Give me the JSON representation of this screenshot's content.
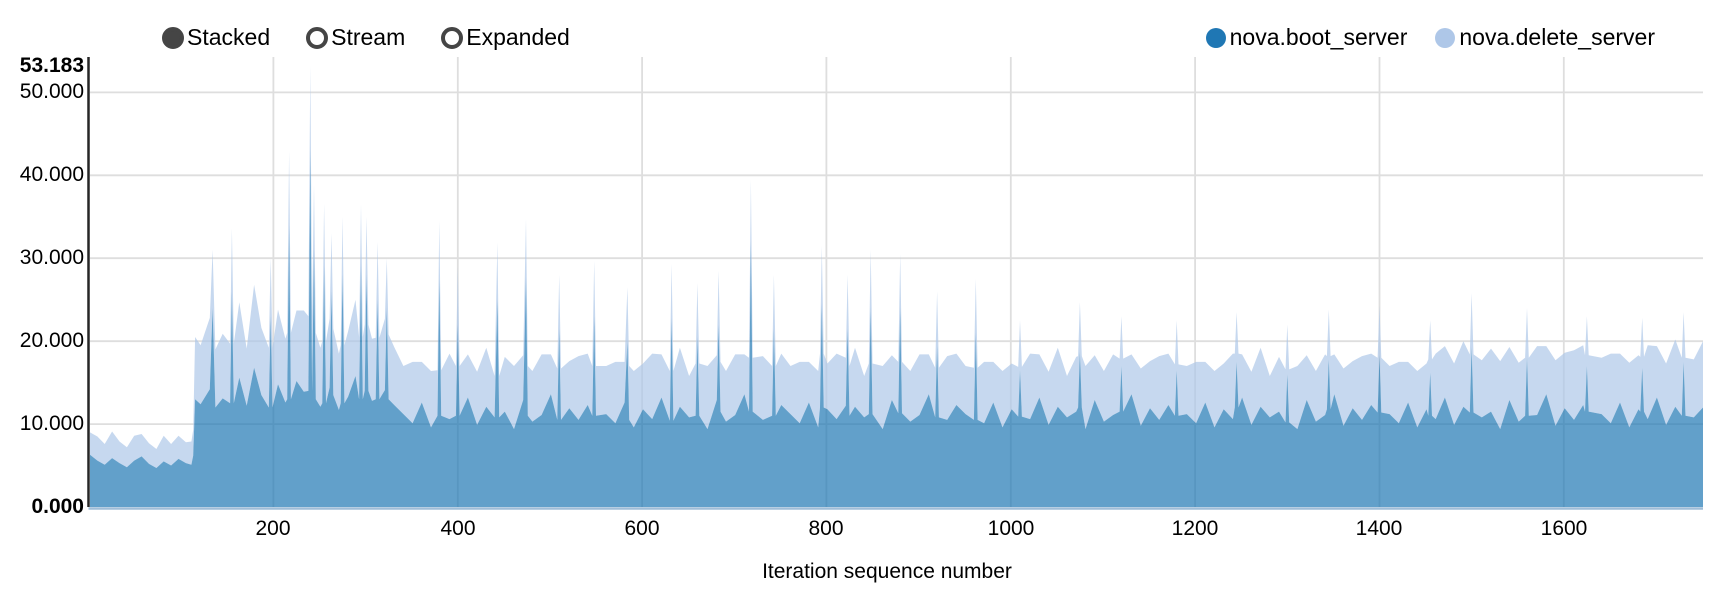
{
  "controls": {
    "options": [
      {
        "label": "Stacked",
        "selected": true
      },
      {
        "label": "Stream",
        "selected": false
      },
      {
        "label": "Expanded",
        "selected": false
      }
    ]
  },
  "legend": {
    "items": [
      {
        "label": "nova.boot_server",
        "color": "#1f77b4"
      },
      {
        "label": "nova.delete_server",
        "color": "#aec7e8"
      }
    ]
  },
  "chart_data": {
    "type": "area",
    "stacked": true,
    "mode": "Stacked",
    "xlabel": "Iteration sequence number",
    "ylabel": "",
    "xlim": [
      1,
      1751
    ],
    "ylim": [
      0,
      53.183
    ],
    "grid": true,
    "legend_position": "top-right",
    "area_opacity": 0.7,
    "colors": {
      "series1": "#1f77b4",
      "series2": "#aec7e8",
      "grid": "#dedede",
      "y_axis_line": "#000000",
      "x_axis_line": "#9fbdd8",
      "text": "#000000",
      "radio": "#454545"
    },
    "y_ticks": {
      "values": [
        0,
        10,
        20,
        30,
        40,
        50
      ],
      "labels": [
        "0.000",
        "10.000",
        "20.000",
        "30.000",
        "40.000",
        "50.000"
      ],
      "max_value": 53.183,
      "max_label": "53.183"
    },
    "x_ticks": [
      200,
      400,
      600,
      800,
      1000,
      1200,
      1400,
      1600
    ],
    "series": [
      {
        "name": "nova.boot_server",
        "color": "#1f77b4"
      },
      {
        "name": "nova.delete_server",
        "color": "#aec7e8"
      }
    ],
    "points_format": [
      "iteration",
      "nova.boot_server_duration",
      "nova.delete_server_duration"
    ],
    "points": [
      [
        1,
        6.3,
        2.7
      ],
      [
        9,
        5.6,
        2.9
      ],
      [
        17,
        5.1,
        2.5
      ],
      [
        25,
        5.9,
        3.2
      ],
      [
        33,
        5.3,
        2.6
      ],
      [
        41,
        4.8,
        2.4
      ],
      [
        49,
        5.6,
        3.0
      ],
      [
        57,
        6.1,
        2.7
      ],
      [
        65,
        5.2,
        2.5
      ],
      [
        73,
        4.7,
        2.3
      ],
      [
        81,
        5.5,
        3.1
      ],
      [
        89,
        5.0,
        2.6
      ],
      [
        97,
        5.8,
        2.8
      ],
      [
        105,
        5.3,
        2.5
      ],
      [
        111,
        5.1,
        2.8
      ],
      [
        113,
        6.2,
        3.1
      ],
      [
        115,
        13.0,
        7.5
      ],
      [
        121,
        12.4,
        7.1
      ],
      [
        131,
        14.2,
        8.6
      ],
      [
        134,
        24.0,
        7.0
      ],
      [
        137,
        12.0,
        7.0
      ],
      [
        145,
        13.1,
        7.8
      ],
      [
        153,
        12.5,
        7.2
      ],
      [
        155,
        26.0,
        7.6
      ],
      [
        157,
        12.5,
        7.2
      ],
      [
        163,
        15.6,
        9.1
      ],
      [
        171,
        12.2,
        6.9
      ],
      [
        179,
        16.8,
        10.0
      ],
      [
        187,
        13.5,
        8.1
      ],
      [
        195,
        12.0,
        7.2
      ],
      [
        197,
        23.0,
        7.0
      ],
      [
        199,
        12.0,
        7.2
      ],
      [
        205,
        14.8,
        9.0
      ],
      [
        213,
        12.6,
        7.7
      ],
      [
        215,
        13.0,
        8.0
      ],
      [
        217,
        34.0,
        8.9
      ],
      [
        219,
        13.0,
        8.0
      ],
      [
        225,
        15.2,
        8.5
      ],
      [
        233,
        13.9,
        9.8
      ],
      [
        238,
        14.0,
        9.0
      ],
      [
        240,
        43.2,
        9.983
      ],
      [
        242,
        14.0,
        9.0
      ],
      [
        244,
        31.0,
        7.8
      ],
      [
        246,
        13.0,
        8.0
      ],
      [
        251,
        12.1,
        7.1
      ],
      [
        253,
        12.5,
        7.5
      ],
      [
        255,
        29.0,
        7.6
      ],
      [
        257,
        12.5,
        7.5
      ],
      [
        261,
        14.4,
        8.3
      ],
      [
        263,
        26.0,
        7.0
      ],
      [
        265,
        13.5,
        8.0
      ],
      [
        271,
        11.7,
        6.8
      ],
      [
        273,
        12.5,
        7.0
      ],
      [
        275,
        28.0,
        7.0
      ],
      [
        277,
        12.5,
        7.0
      ],
      [
        281,
        13.3,
        7.9
      ],
      [
        289,
        15.8,
        9.2
      ],
      [
        293,
        13.0,
        7.5
      ],
      [
        295,
        29.0,
        7.5
      ],
      [
        297,
        13.0,
        7.5
      ],
      [
        299,
        14.0,
        8.0
      ],
      [
        301,
        28.0,
        7.0
      ],
      [
        303,
        14.0,
        8.0
      ],
      [
        307,
        12.8,
        7.5
      ],
      [
        311,
        13.0,
        7.4
      ],
      [
        313,
        25.0,
        7.0
      ],
      [
        315,
        13.0,
        7.4
      ],
      [
        321,
        14.1,
        8.6
      ],
      [
        323,
        24.0,
        6.0
      ],
      [
        325,
        13.0,
        7.8
      ],
      [
        331,
        12.3,
        7.0
      ],
      [
        341,
        11.2,
        5.8
      ],
      [
        351,
        10.1,
        7.4
      ],
      [
        361,
        12.6,
        4.9
      ],
      [
        371,
        9.6,
        6.8
      ],
      [
        378,
        11.0,
        5.5
      ],
      [
        380,
        27.5,
        7.0
      ],
      [
        382,
        11.0,
        5.5
      ],
      [
        391,
        10.6,
        7.9
      ],
      [
        398,
        11.0,
        6.0
      ],
      [
        400,
        22.0,
        7.0
      ],
      [
        402,
        11.0,
        6.0
      ],
      [
        411,
        13.2,
        5.2
      ],
      [
        421,
        9.9,
        6.4
      ],
      [
        431,
        12.1,
        7.1
      ],
      [
        440,
        10.8,
        5.0
      ],
      [
        443,
        25.0,
        6.9
      ],
      [
        445,
        10.8,
        5.0
      ],
      [
        451,
        11.5,
        6.6
      ],
      [
        461,
        9.4,
        7.6
      ],
      [
        471,
        12.9,
        5.4
      ],
      [
        474,
        27.7,
        7.0
      ],
      [
        476,
        11.0,
        6.0
      ],
      [
        481,
        10.3,
        6.1
      ],
      [
        491,
        11.1,
        7.3
      ],
      [
        501,
        13.6,
        4.8
      ],
      [
        508,
        10.5,
        6.2
      ],
      [
        510,
        21.5,
        6.5
      ],
      [
        512,
        10.5,
        6.2
      ],
      [
        521,
        11.9,
        5.7
      ],
      [
        531,
        10.5,
        7.7
      ],
      [
        541,
        12.3,
        6.2
      ],
      [
        546,
        11.0,
        6.0
      ],
      [
        548,
        23.0,
        6.7
      ],
      [
        550,
        11.0,
        6.0
      ],
      [
        561,
        11.2,
        5.8
      ],
      [
        571,
        10.1,
        7.4
      ],
      [
        581,
        12.6,
        4.9
      ],
      [
        584,
        20.0,
        6.5
      ],
      [
        586,
        10.5,
        6.5
      ],
      [
        591,
        9.6,
        6.8
      ],
      [
        601,
        11.8,
        5.5
      ],
      [
        611,
        10.6,
        7.9
      ],
      [
        621,
        13.2,
        5.2
      ],
      [
        630,
        10.4,
        6.0
      ],
      [
        632,
        22.8,
        6.5
      ],
      [
        634,
        10.4,
        6.0
      ],
      [
        641,
        12.1,
        7.1
      ],
      [
        651,
        10.8,
        5.0
      ],
      [
        658,
        11.0,
        6.3
      ],
      [
        660,
        20.5,
        6.5
      ],
      [
        662,
        11.0,
        6.3
      ],
      [
        671,
        9.4,
        7.6
      ],
      [
        681,
        12.9,
        5.4
      ],
      [
        683,
        22.0,
        6.5
      ],
      [
        685,
        11.5,
        6.0
      ],
      [
        691,
        10.3,
        6.1
      ],
      [
        701,
        11.1,
        7.3
      ],
      [
        711,
        13.6,
        4.8
      ],
      [
        716,
        11.5,
        6.5
      ],
      [
        718,
        32.0,
        7.5
      ],
      [
        720,
        11.5,
        6.5
      ],
      [
        731,
        10.5,
        7.7
      ],
      [
        741,
        11.0,
        6.0
      ],
      [
        743,
        21.5,
        6.5
      ],
      [
        745,
        11.0,
        6.0
      ],
      [
        751,
        12.3,
        6.2
      ],
      [
        761,
        11.2,
        5.8
      ],
      [
        771,
        10.1,
        7.4
      ],
      [
        781,
        12.6,
        4.9
      ],
      [
        791,
        9.6,
        6.8
      ],
      [
        793,
        12.0,
        6.5
      ],
      [
        795,
        24.5,
        7.0
      ],
      [
        797,
        12.0,
        6.5
      ],
      [
        801,
        11.8,
        5.5
      ],
      [
        811,
        10.6,
        7.9
      ],
      [
        821,
        12.2,
        5.8
      ],
      [
        823,
        21.5,
        6.5
      ],
      [
        825,
        11.0,
        6.0
      ],
      [
        831,
        12.1,
        7.1
      ],
      [
        841,
        10.8,
        5.0
      ],
      [
        846,
        11.2,
        6.1
      ],
      [
        848,
        24.0,
        7.0
      ],
      [
        850,
        11.2,
        6.1
      ],
      [
        861,
        9.4,
        7.6
      ],
      [
        871,
        12.9,
        5.4
      ],
      [
        878,
        11.3,
        6.2
      ],
      [
        880,
        24.0,
        6.5
      ],
      [
        882,
        11.3,
        6.2
      ],
      [
        891,
        10.3,
        6.1
      ],
      [
        901,
        11.1,
        7.3
      ],
      [
        911,
        13.6,
        4.8
      ],
      [
        918,
        10.8,
        6.0
      ],
      [
        920,
        19.5,
        6.5
      ],
      [
        922,
        10.8,
        6.0
      ],
      [
        931,
        10.5,
        7.7
      ],
      [
        941,
        12.3,
        6.2
      ],
      [
        951,
        11.2,
        5.8
      ],
      [
        960,
        10.5,
        6.3
      ],
      [
        962,
        21.0,
        6.5
      ],
      [
        964,
        10.5,
        6.3
      ],
      [
        971,
        10.1,
        7.4
      ],
      [
        981,
        12.6,
        4.9
      ],
      [
        991,
        9.6,
        6.8
      ],
      [
        1001,
        11.8,
        5.5
      ],
      [
        1008,
        10.9,
        6.0
      ],
      [
        1010,
        16.5,
        6.0
      ],
      [
        1012,
        10.9,
        6.0
      ],
      [
        1021,
        10.6,
        7.9
      ],
      [
        1031,
        13.2,
        5.2
      ],
      [
        1041,
        9.9,
        6.4
      ],
      [
        1051,
        12.1,
        7.1
      ],
      [
        1061,
        10.8,
        5.0
      ],
      [
        1071,
        11.5,
        6.6
      ],
      [
        1073,
        12.0,
        6.2
      ],
      [
        1075,
        18.7,
        6.0
      ],
      [
        1077,
        12.0,
        6.2
      ],
      [
        1081,
        9.4,
        7.6
      ],
      [
        1091,
        12.9,
        5.4
      ],
      [
        1101,
        10.3,
        6.1
      ],
      [
        1111,
        11.1,
        7.3
      ],
      [
        1118,
        11.5,
        6.4
      ],
      [
        1120,
        17.0,
        6.0
      ],
      [
        1122,
        11.5,
        6.4
      ],
      [
        1131,
        13.6,
        4.8
      ],
      [
        1141,
        9.8,
        6.9
      ],
      [
        1151,
        11.9,
        5.7
      ],
      [
        1161,
        10.5,
        7.7
      ],
      [
        1171,
        12.3,
        6.2
      ],
      [
        1178,
        11.0,
        6.2
      ],
      [
        1180,
        16.5,
        6.0
      ],
      [
        1182,
        11.0,
        6.2
      ],
      [
        1191,
        11.2,
        5.8
      ],
      [
        1201,
        10.1,
        7.4
      ],
      [
        1211,
        12.6,
        4.9
      ],
      [
        1221,
        9.6,
        6.8
      ],
      [
        1231,
        11.8,
        5.5
      ],
      [
        1241,
        10.6,
        7.9
      ],
      [
        1243,
        12.0,
        6.5
      ],
      [
        1245,
        17.5,
        6.0
      ],
      [
        1247,
        12.0,
        6.5
      ],
      [
        1251,
        13.2,
        5.2
      ],
      [
        1261,
        9.9,
        6.4
      ],
      [
        1271,
        12.1,
        7.1
      ],
      [
        1281,
        10.8,
        5.0
      ],
      [
        1291,
        11.5,
        6.6
      ],
      [
        1298,
        10.2,
        6.4
      ],
      [
        1300,
        16.0,
        6.0
      ],
      [
        1302,
        10.2,
        6.4
      ],
      [
        1311,
        9.4,
        7.6
      ],
      [
        1321,
        12.9,
        5.4
      ],
      [
        1331,
        10.3,
        6.1
      ],
      [
        1341,
        11.1,
        7.3
      ],
      [
        1343,
        11.8,
        6.4
      ],
      [
        1345,
        17.8,
        6.0
      ],
      [
        1347,
        11.8,
        6.4
      ],
      [
        1351,
        13.6,
        4.8
      ],
      [
        1361,
        9.8,
        6.9
      ],
      [
        1371,
        11.9,
        5.7
      ],
      [
        1381,
        10.5,
        7.7
      ],
      [
        1391,
        12.3,
        6.2
      ],
      [
        1398,
        11.4,
        6.6
      ],
      [
        1400,
        18.3,
        6.0
      ],
      [
        1402,
        11.4,
        6.6
      ],
      [
        1411,
        11.2,
        5.8
      ],
      [
        1421,
        10.1,
        7.4
      ],
      [
        1431,
        12.6,
        4.9
      ],
      [
        1441,
        9.6,
        6.8
      ],
      [
        1451,
        11.8,
        5.5
      ],
      [
        1453,
        11.0,
        6.8
      ],
      [
        1455,
        16.2,
        6.3
      ],
      [
        1457,
        11.0,
        6.8
      ],
      [
        1461,
        10.6,
        7.9
      ],
      [
        1471,
        13.2,
        6.2
      ],
      [
        1481,
        9.9,
        7.4
      ],
      [
        1491,
        12.1,
        7.9
      ],
      [
        1498,
        11.4,
        7.0
      ],
      [
        1500,
        19.3,
        6.5
      ],
      [
        1502,
        11.4,
        7.0
      ],
      [
        1511,
        10.8,
        6.9
      ],
      [
        1521,
        11.5,
        7.6
      ],
      [
        1531,
        9.4,
        8.2
      ],
      [
        1541,
        12.9,
        6.4
      ],
      [
        1551,
        10.3,
        7.1
      ],
      [
        1558,
        11.0,
        7.0
      ],
      [
        1560,
        18.0,
        6.0
      ],
      [
        1562,
        11.0,
        7.0
      ],
      [
        1571,
        11.1,
        8.3
      ],
      [
        1581,
        13.6,
        5.8
      ],
      [
        1591,
        9.8,
        7.9
      ],
      [
        1601,
        11.9,
        6.7
      ],
      [
        1611,
        10.5,
        8.4
      ],
      [
        1621,
        12.3,
        7.2
      ],
      [
        1623,
        11.5,
        6.8
      ],
      [
        1625,
        17.0,
        6.0
      ],
      [
        1627,
        11.5,
        6.8
      ],
      [
        1641,
        11.2,
        6.8
      ],
      [
        1651,
        10.1,
        8.4
      ],
      [
        1661,
        12.6,
        5.9
      ],
      [
        1671,
        9.6,
        7.8
      ],
      [
        1681,
        11.8,
        6.5
      ],
      [
        1683,
        11.5,
        6.6
      ],
      [
        1685,
        16.8,
        6.0
      ],
      [
        1687,
        11.5,
        6.6
      ],
      [
        1691,
        10.6,
        8.9
      ],
      [
        1701,
        13.2,
        6.2
      ],
      [
        1711,
        9.9,
        7.4
      ],
      [
        1721,
        12.1,
        8.1
      ],
      [
        1728,
        11.0,
        7.0
      ],
      [
        1730,
        17.5,
        6.0
      ],
      [
        1732,
        11.0,
        7.0
      ],
      [
        1741,
        10.8,
        7.0
      ],
      [
        1751,
        12.0,
        8.0
      ]
    ]
  }
}
